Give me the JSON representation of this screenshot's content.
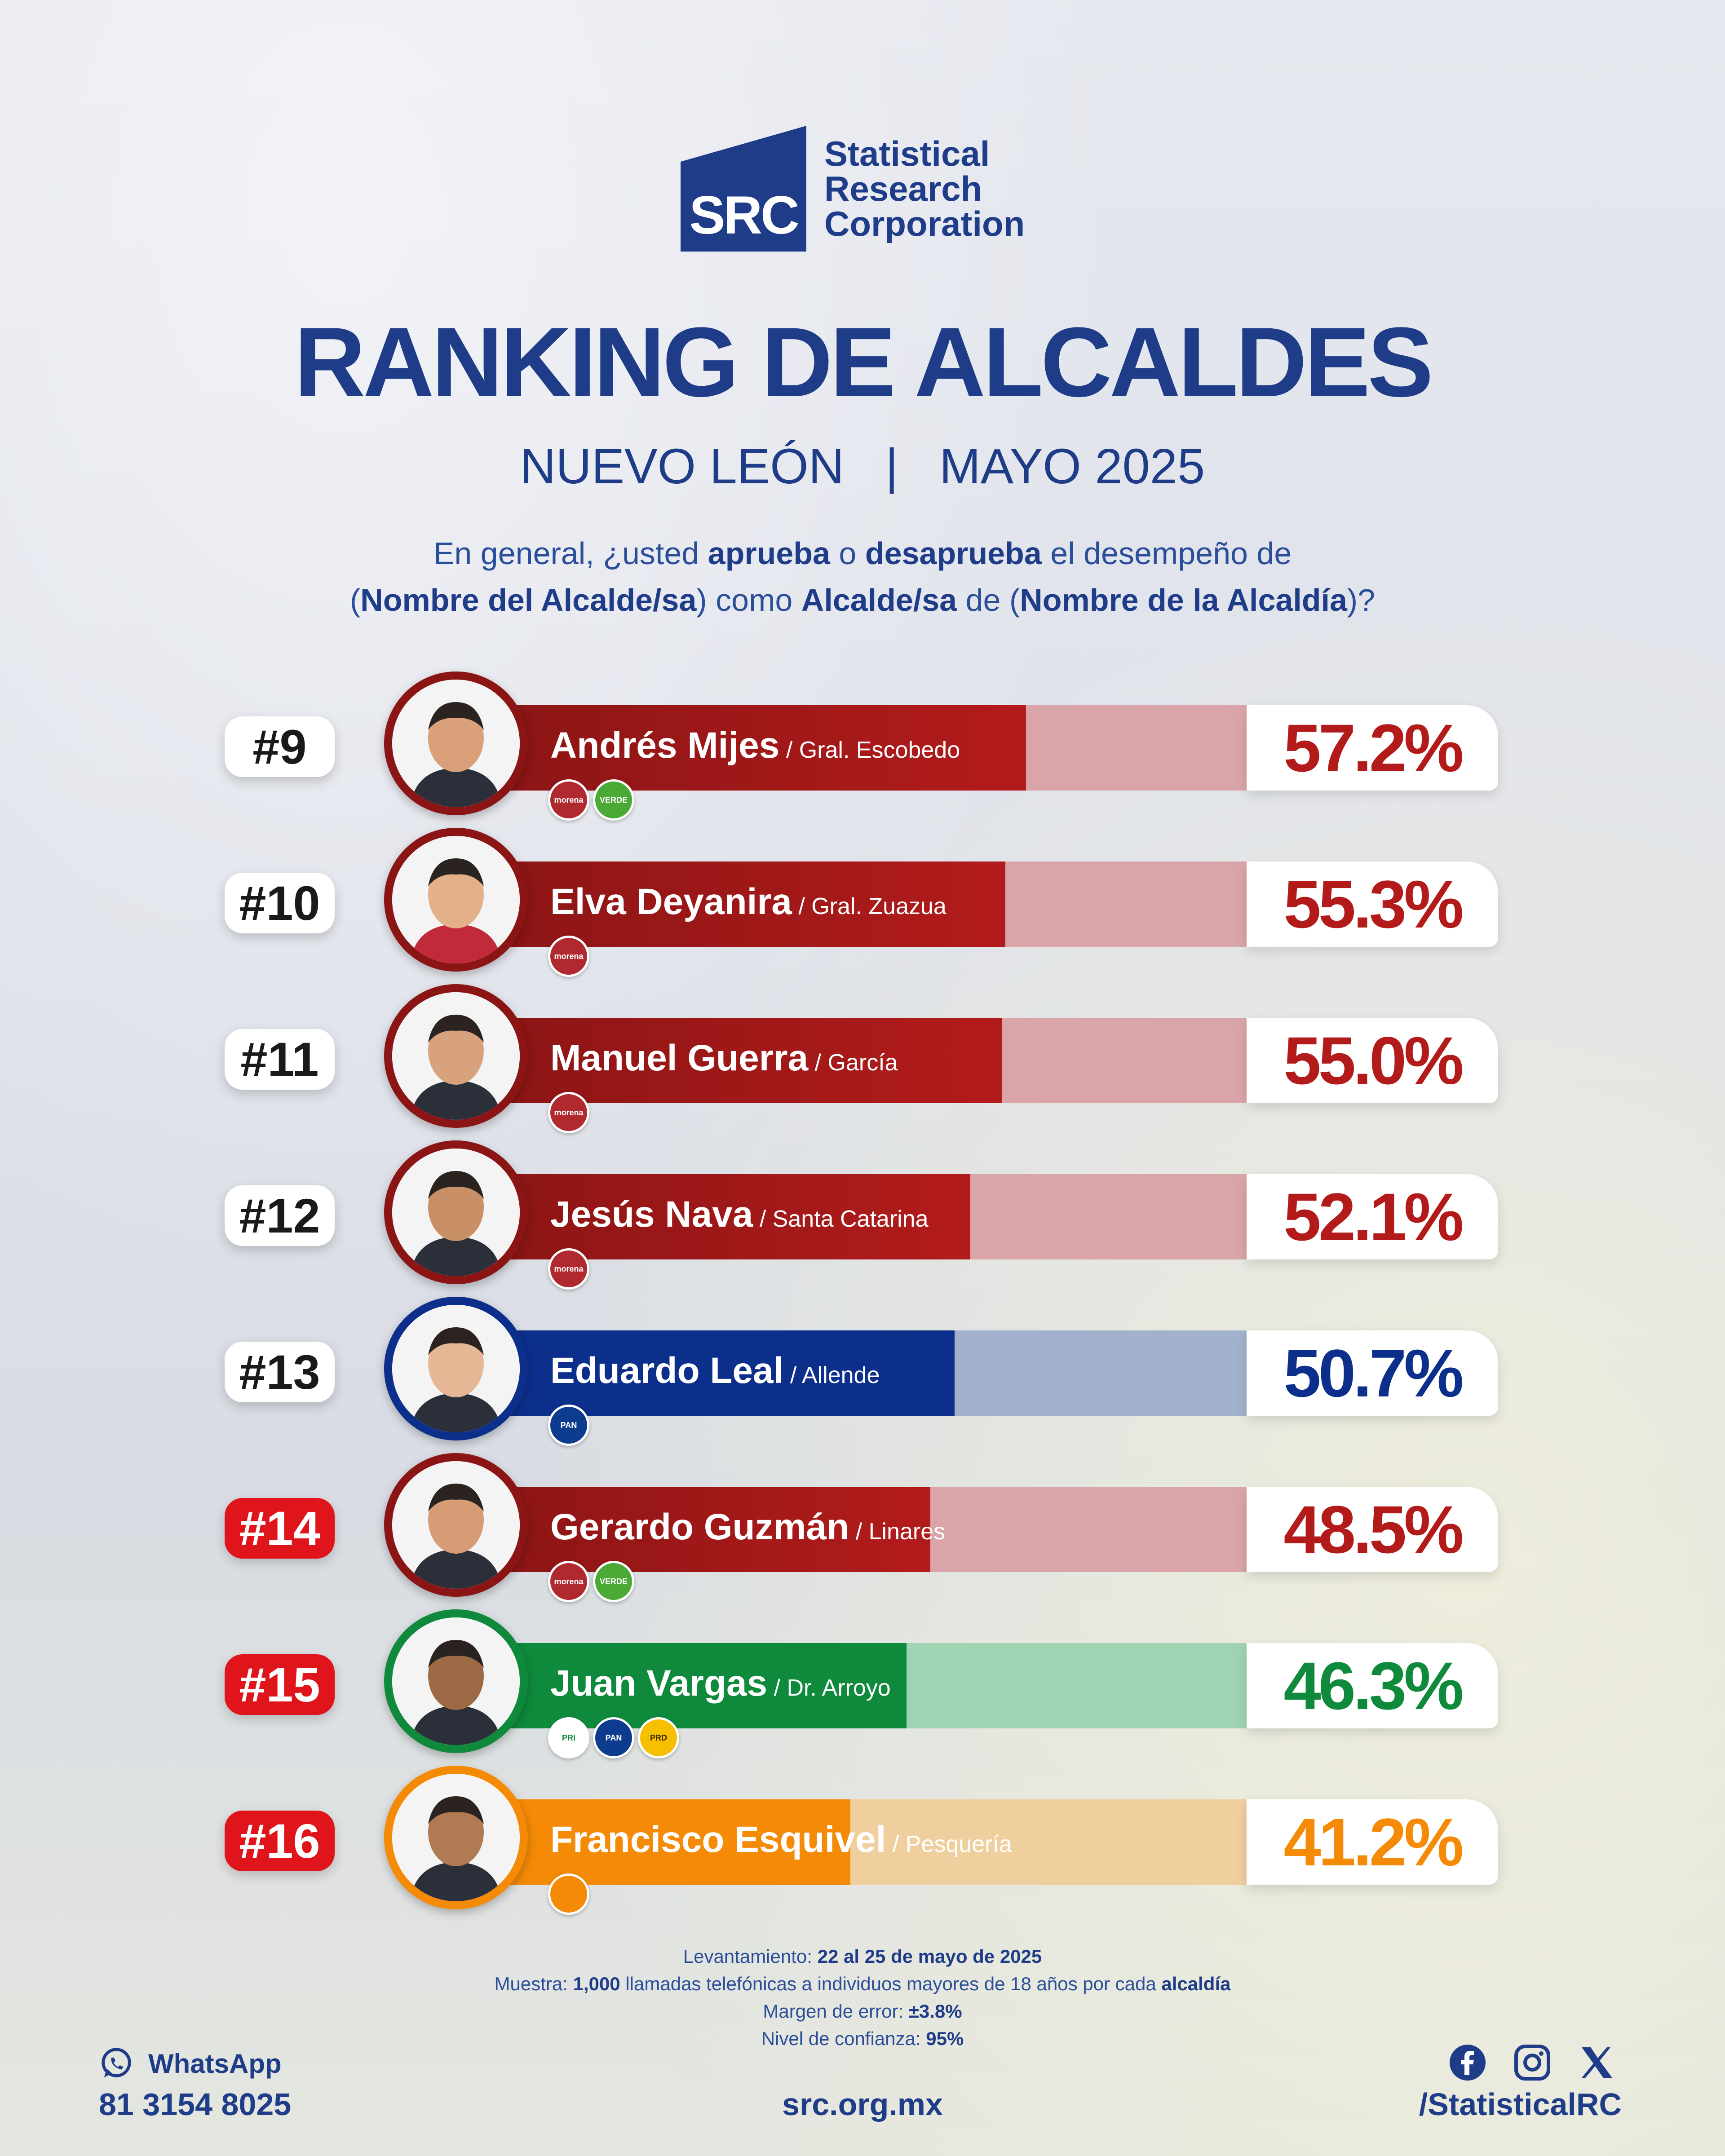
{
  "logo": {
    "mark": "SRC",
    "line1": "Statistical",
    "line2": "Research",
    "line3": "Corporation"
  },
  "title": "RANKING DE ALCALDES",
  "subtitle": "NUEVO LEÓN   |   MAYO 2025",
  "question": {
    "p1": "En general, ¿usted ",
    "b1": "aprueba",
    "p2": " o ",
    "b2": "desaprueba",
    "p3": " el desempeño de",
    "p4": "(",
    "b3": "Nombre del Alcalde/sa",
    "p5": ") como ",
    "b4": "Alcalde/sa",
    "p6": " de (",
    "b5": "Nombre de la Alcaldía",
    "p7": ")?"
  },
  "chart_data": {
    "type": "bar",
    "orientation": "horizontal",
    "categories": [
      "Andrés Mijes",
      "Elva Deyanira",
      "Manuel Guerra",
      "Jesús Nava",
      "Eduardo Leal",
      "Gerardo Guzmán",
      "Juan Vargas",
      "Francisco Esquivel"
    ],
    "values": [
      57.2,
      55.3,
      55.0,
      52.1,
      50.7,
      48.5,
      46.3,
      41.2
    ],
    "ylim": [
      0,
      100
    ],
    "rows": [
      {
        "rank": "#9",
        "name": "Andrés Mijes",
        "municipality": " / Gral. Escobedo",
        "pct": "57.2%",
        "value": 57.2,
        "highlight": false,
        "color": "#b31b1b",
        "light": "#d9a5a8",
        "border": "#8b1515",
        "parties": [
          "morena",
          "verde"
        ]
      },
      {
        "rank": "#10",
        "name": "Elva Deyanira",
        "municipality": " / Gral. Zuazua",
        "pct": "55.3%",
        "value": 55.3,
        "highlight": false,
        "color": "#b31b1b",
        "light": "#d9a5a8",
        "border": "#8b1515",
        "parties": [
          "morena"
        ]
      },
      {
        "rank": "#11",
        "name": "Manuel Guerra",
        "municipality": " / García",
        "pct": "55.0%",
        "value": 55.0,
        "highlight": false,
        "color": "#b31b1b",
        "light": "#d9a5a8",
        "border": "#8b1515",
        "parties": [
          "morena"
        ]
      },
      {
        "rank": "#12",
        "name": "Jesús Nava",
        "municipality": " / Santa Catarina",
        "pct": "52.1%",
        "value": 52.1,
        "highlight": false,
        "color": "#b31b1b",
        "light": "#d9a5a8",
        "border": "#8b1515",
        "parties": [
          "morena"
        ]
      },
      {
        "rank": "#13",
        "name": "Eduardo Leal",
        "municipality": " / Allende",
        "pct": "50.7%",
        "value": 50.7,
        "highlight": false,
        "color": "#0d2f8c",
        "light": "#a2b1cc",
        "border": "#0d2f8c",
        "parties": [
          "pan"
        ]
      },
      {
        "rank": "#14",
        "name": "Gerardo Guzmán",
        "municipality": " / Linares",
        "pct": "48.5%",
        "value": 48.5,
        "highlight": true,
        "color": "#b31b1b",
        "light": "#d9a5a8",
        "border": "#8b1515",
        "parties": [
          "morena",
          "verde"
        ]
      },
      {
        "rank": "#15",
        "name": "Juan Vargas",
        "municipality": " / Dr. Arroyo",
        "pct": "46.3%",
        "value": 46.3,
        "highlight": true,
        "color": "#0f8a3c",
        "light": "#9fd3b2",
        "border": "#0f8a3c",
        "parties": [
          "pri",
          "pan",
          "prd"
        ]
      },
      {
        "rank": "#16",
        "name": "Francisco Esquivel",
        "municipality": " / Pesquería",
        "pct": "41.2%",
        "value": 41.2,
        "highlight": true,
        "color": "#f58a07",
        "light": "#f0cf9f",
        "border": "#f58a07",
        "parties": [
          "mc"
        ]
      }
    ]
  },
  "party_labels": {
    "morena": "morena",
    "verde": "VERDE",
    "pan": "PAN",
    "pri": "PRI",
    "prd": "PRD",
    "mc": ""
  },
  "party_colors": {
    "morena": "#b0292e",
    "verde": "#4ba935",
    "pan": "#0d3c8f",
    "pri": "#ffffff",
    "prd": "#f6c000",
    "mc": "#f58a07"
  },
  "footer": {
    "n1": "Levantamiento: ",
    "n1b": "22 al 25 de mayo de 2025",
    "n2": "Muestra: ",
    "n2b": "1,000",
    "n2c": " llamadas telefónicas a individuos mayores de 18 años por cada ",
    "n2d": "alcaldía",
    "n3": "Margen de error: ",
    "n3b": "±3.8%",
    "n4": "Nivel de confianza: ",
    "n4b": "95%",
    "whatsapp_label": "WhatsApp",
    "phone": "81 3154 8025",
    "site": "src.org.mx",
    "handle": "/StatisticalRC",
    "icons": [
      "whatsapp-icon",
      "facebook-icon",
      "instagram-icon",
      "x-icon"
    ]
  }
}
